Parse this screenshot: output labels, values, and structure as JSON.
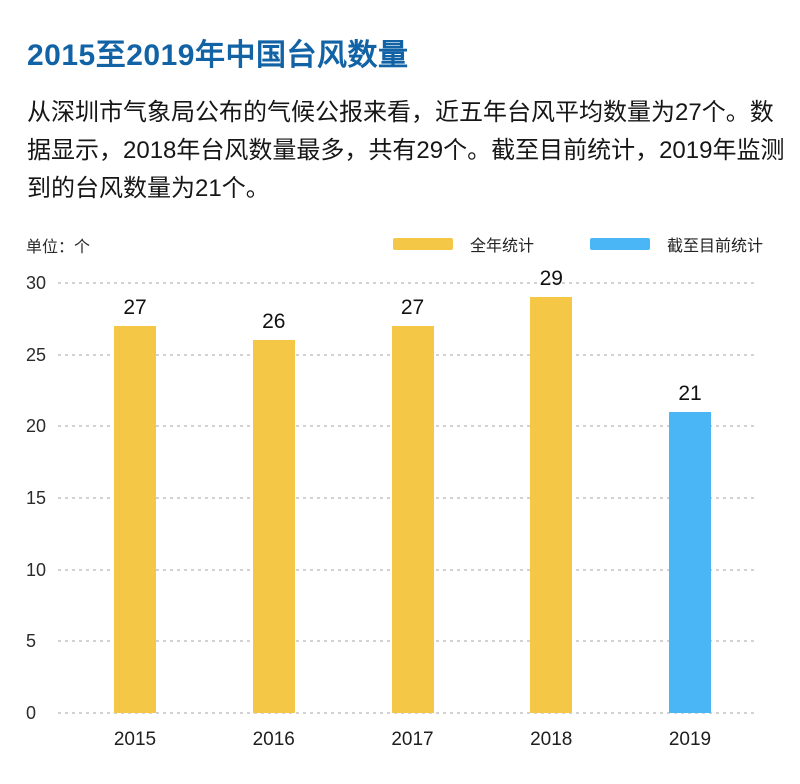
{
  "page": {
    "title": "2015至2019年中国台风数量",
    "description": "从深圳市气象局公布的气候公报来看，近五年台风平均数量为27个。数据显示，2018年台风数量最多，共有29个。截至目前统计，2019年监测到的台风数量为21个。"
  },
  "colors": {
    "title": "#1163A6",
    "body_text": "#161616",
    "gridline": "#D2D2D2",
    "full_year_bar": "#F4C846",
    "to_date_bar": "#4AB6F5"
  },
  "chart_data": {
    "type": "bar",
    "title": "2015至2019年中国台风数量",
    "unit_label": "单位：个",
    "categories": [
      "2015",
      "2016",
      "2017",
      "2018",
      "2019"
    ],
    "values": [
      27,
      26,
      27,
      29,
      21
    ],
    "value_labels": [
      "27",
      "26",
      "27",
      "29",
      "21"
    ],
    "bar_series": [
      0,
      0,
      0,
      0,
      1
    ],
    "series": [
      {
        "name": "全年统计",
        "color": "#F4C846"
      },
      {
        "name": "截至目前统计",
        "color": "#4AB6F5"
      }
    ],
    "ylim": [
      0,
      30
    ],
    "yticks": [
      0,
      5,
      10,
      15,
      20,
      25,
      30
    ],
    "grid": "horizontal-dotted",
    "legend_position": "top-right"
  }
}
